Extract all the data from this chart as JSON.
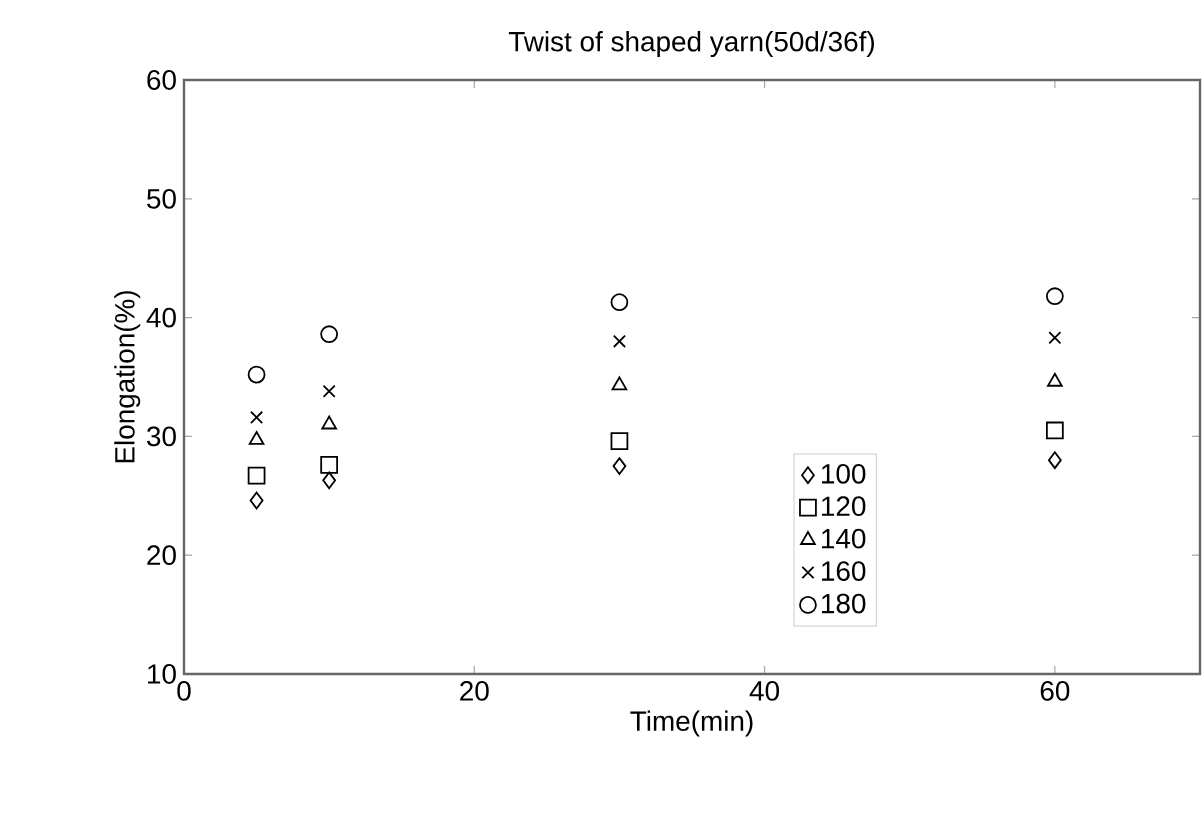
{
  "chart_data": {
    "type": "scatter",
    "title": "Twist of shaped yarn(50d/36f)",
    "xlabel": "Time(min)",
    "ylabel": "Elongation(%)",
    "x": [
      5,
      10,
      30,
      60
    ],
    "series": [
      {
        "name": "100",
        "color": "#000000",
        "marker": "diamond",
        "values": [
          24.6,
          26.3,
          27.5,
          28.0
        ]
      },
      {
        "name": "120",
        "color": "#000000",
        "marker": "square",
        "values": [
          26.7,
          27.6,
          29.6,
          30.5
        ]
      },
      {
        "name": "140",
        "color": "#000000",
        "marker": "triangle",
        "values": [
          29.7,
          31.0,
          34.3,
          34.6
        ]
      },
      {
        "name": "160",
        "color": "#000000",
        "marker": "cross",
        "values": [
          31.6,
          33.8,
          38.0,
          38.3
        ]
      },
      {
        "name": "180",
        "color": "#000000",
        "marker": "circle",
        "values": [
          35.2,
          38.6,
          41.3,
          41.8
        ]
      }
    ],
    "xlim": [
      0,
      70
    ],
    "xticks": [
      0,
      20,
      40,
      60
    ],
    "ylim": [
      10,
      60
    ],
    "yticks": [
      10,
      20,
      30,
      40,
      50,
      60
    ],
    "grid": false,
    "legend": "right"
  }
}
